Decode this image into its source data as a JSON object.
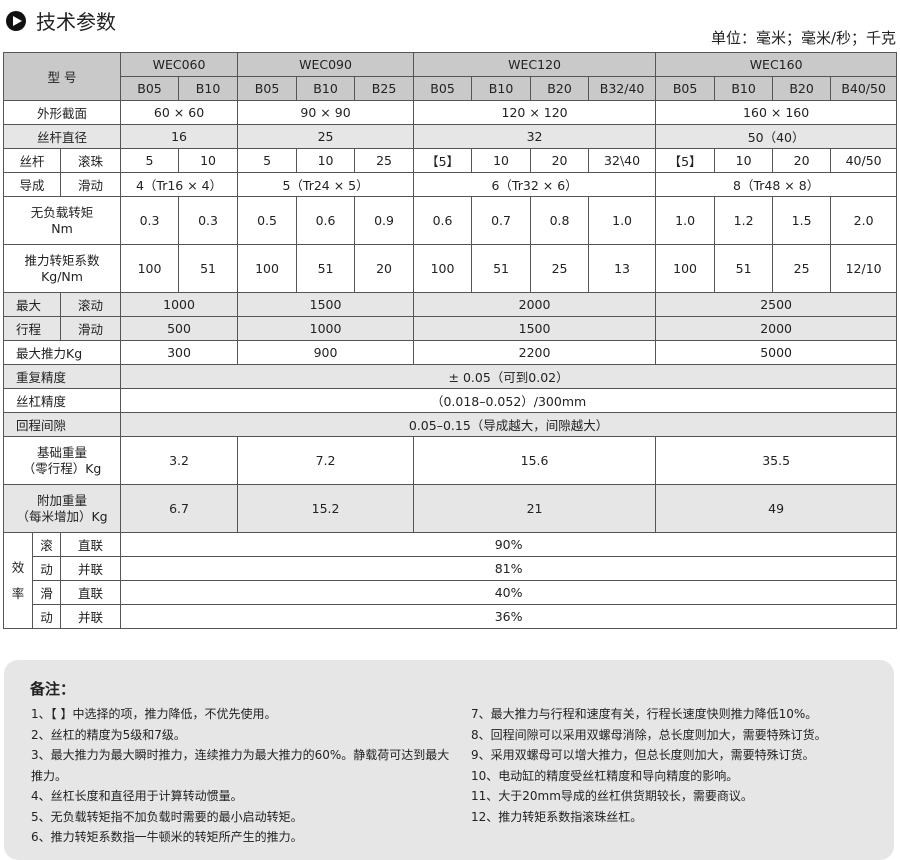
{
  "title": "技术参数",
  "unit": "单位：毫米；毫米/秒；千克",
  "colors": {
    "header_bg": "#c9c9c9",
    "shaded_row_bg": "#e6e6e6",
    "notes_bg": "#e6e6e6"
  },
  "table": {
    "model_label": "型 号",
    "models": [
      "WEC060",
      "WEC090",
      "WEC120",
      "WEC160"
    ],
    "variants": [
      "B05",
      "B10",
      "B05",
      "B10",
      "B25",
      "B05",
      "B10",
      "B20",
      "B32/40",
      "B05",
      "B10",
      "B20",
      "B40/50"
    ],
    "section": {
      "label": "外形截面",
      "values": [
        "60 × 60",
        "90 × 90",
        "120 × 120",
        "160 × 160"
      ]
    },
    "screw_diameter": {
      "label": "丝杆直径",
      "values": [
        "16",
        "25",
        "32",
        "50（40）"
      ]
    },
    "lead": {
      "label_a": "丝杆",
      "label_b": "导成",
      "ball_label": "滚珠",
      "ball": [
        "5",
        "10",
        "5",
        "10",
        "25",
        "【5】",
        "10",
        "20",
        "32\\40",
        "【5】",
        "10",
        "20",
        "40/50"
      ],
      "slide_label": "滑动",
      "slide": [
        "4（Tr16 × 4）",
        "5（Tr24 × 5）",
        "6（Tr32 × 6）",
        "8（Tr48 × 8）"
      ]
    },
    "no_load_torque": {
      "label": "无负载转矩",
      "unit": "Nm",
      "values": [
        "0.3",
        "0.3",
        "0.5",
        "0.6",
        "0.9",
        "0.6",
        "0.7",
        "0.8",
        "1.0",
        "1.0",
        "1.2",
        "1.5",
        "2.0"
      ]
    },
    "thrust_coef": {
      "label": "推力转矩系数",
      "unit": "Kg/Nm",
      "values": [
        "100",
        "51",
        "100",
        "51",
        "20",
        "100",
        "51",
        "25",
        "13",
        "100",
        "51",
        "25",
        "12/10"
      ]
    },
    "max_stroke": {
      "label_a": "最大",
      "label_b": "行程",
      "roll_label": "滚动",
      "roll": [
        "1000",
        "1500",
        "2000",
        "2500"
      ],
      "slide_label": "滑动",
      "slide": [
        "500",
        "1000",
        "1500",
        "2000"
      ]
    },
    "max_thrust": {
      "label": "最大推力Kg",
      "values": [
        "300",
        "900",
        "2200",
        "5000"
      ]
    },
    "repeat": {
      "label": "重复精度",
      "value": "± 0.05（可到0.02）"
    },
    "screw_precision": {
      "label": "丝杠精度",
      "value": "（0.018–0.052）/300mm"
    },
    "backlash": {
      "label": "回程间隙",
      "value": "0.05–0.15（导成越大，间隙越大）"
    },
    "base_weight": {
      "label_a": "基础重量",
      "label_b": "（零行程）Kg",
      "values": [
        "3.2",
        "7.2",
        "15.6",
        "35.5"
      ]
    },
    "add_weight": {
      "label_a": "附加重量",
      "label_b": "（每米增加）Kg",
      "values": [
        "6.7",
        "15.2",
        "21",
        "49"
      ]
    },
    "efficiency": {
      "label_a": "效",
      "label_b": "率",
      "roll_a": "滚",
      "roll_b": "动",
      "slide_a": "滑",
      "slide_b": "动",
      "direct": "直联",
      "parallel": "并联",
      "values": [
        "90%",
        "81%",
        "40%",
        "36%"
      ]
    }
  },
  "notes": {
    "title": "备注：",
    "left": [
      "1、【 】中选择的项，推力降低，不优先使用。",
      "2、丝杠的精度为5级和7级。",
      "3、最大推力为最大瞬时推力，连续推力为最大推力的60%。静载荷可达到最大推力。",
      "4、丝杠长度和直径用于计算转动惯量。",
      "5、无负载转矩指不加负载时需要的最小启动转矩。",
      "6、推力转矩系数指一牛顿米的转矩所产生的推力。"
    ],
    "right": [
      "7、最大推力与行程和速度有关，行程长速度快则推力降低10%。",
      "8、回程间隙可以采用双螺母消除，总长度则加大，需要特殊订货。",
      "9、采用双螺母可以增大推力，但总长度则加大，需要特殊订货。",
      "10、电动缸的精度受丝杠精度和导向精度的影响。",
      "11、大于20mm导成的丝杠供货期较长，需要商议。",
      "12、推力转矩系数指滚珠丝杠。"
    ]
  }
}
